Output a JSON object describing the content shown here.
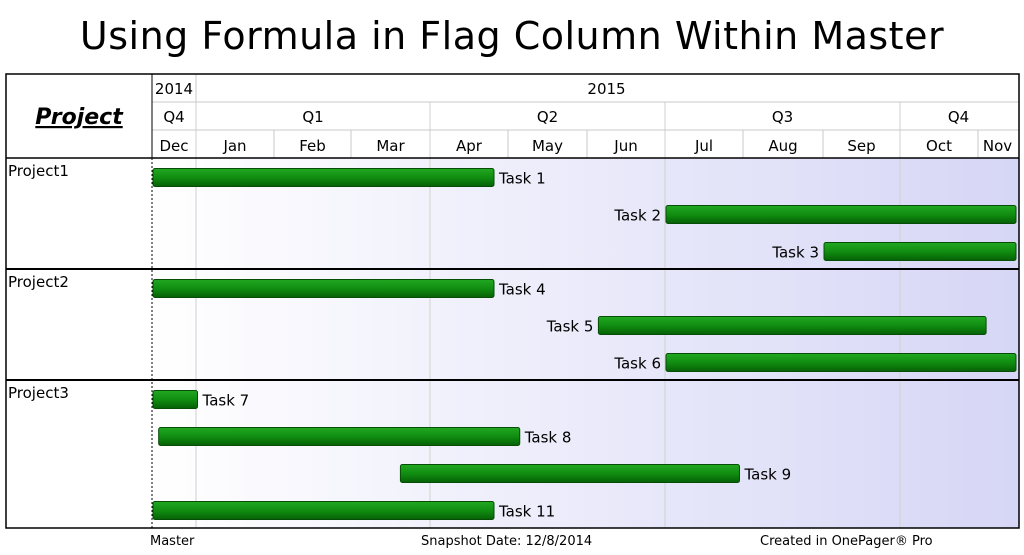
{
  "title": "Using Formula in Flag Column Within Master",
  "footer": {
    "left": "Master",
    "center": "Snapshot Date: 12/8/2014",
    "right": "Created in OnePager® Pro"
  },
  "colors": {
    "bar": "#0f8a0f",
    "bar_dark": "#066006",
    "bg_start": "#ffffff",
    "bg_end": "#d6d6f6"
  },
  "chart_data": {
    "type": "gantt",
    "title": "Using Formula in Flag Column Within Master",
    "row_header_label": "Project",
    "timescale": {
      "years": [
        "2014",
        "2015"
      ],
      "quarters": [
        "Q4",
        "Q1",
        "Q2",
        "Q3",
        "Q4"
      ],
      "months": [
        "Dec",
        "Jan",
        "Feb",
        "Mar",
        "Apr",
        "May",
        "Jun",
        "Jul",
        "Aug",
        "Sep",
        "Oct",
        "Nov"
      ]
    },
    "x_range": [
      "2014-12-01",
      "2015-11-30"
    ],
    "projects": [
      {
        "name": "Project1",
        "tasks": [
          {
            "name": "Task 1",
            "start": "2014-12-01",
            "end": "2015-04-25"
          },
          {
            "name": "Task 2",
            "start": "2015-07-01",
            "end": "2015-11-30"
          },
          {
            "name": "Task 3",
            "start": "2015-09-01",
            "end": "2015-11-30"
          }
        ]
      },
      {
        "name": "Project2",
        "tasks": [
          {
            "name": "Task 4",
            "start": "2014-12-01",
            "end": "2015-04-25"
          },
          {
            "name": "Task 5",
            "start": "2015-06-05",
            "end": "2015-11-07"
          },
          {
            "name": "Task 6",
            "start": "2015-07-01",
            "end": "2015-11-30"
          }
        ]
      },
      {
        "name": "Project3",
        "tasks": [
          {
            "name": "Task 7",
            "start": "2014-12-01",
            "end": "2015-01-01"
          },
          {
            "name": "Task 8",
            "start": "2014-12-05",
            "end": "2015-05-05"
          },
          {
            "name": "Task 9",
            "start": "2015-03-20",
            "end": "2015-07-30"
          },
          {
            "name": "Task 11",
            "start": "2014-12-01",
            "end": "2015-04-25"
          }
        ]
      }
    ]
  }
}
